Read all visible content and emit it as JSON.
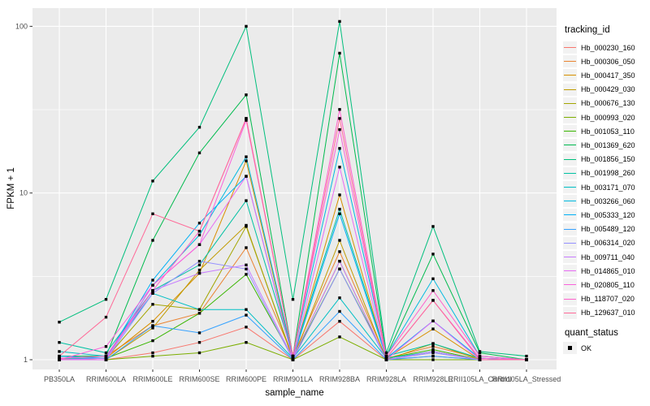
{
  "chart_data": {
    "type": "line",
    "title": "",
    "xlabel": "sample_name",
    "ylabel": "FPKM + 1",
    "y_scale": "log10",
    "ylim": [
      0.87,
      130
    ],
    "ytick_values": [
      1,
      10,
      100
    ],
    "ytick_labels": [
      "1",
      "10",
      "100"
    ],
    "yminor_values": [
      3.1623,
      31.623
    ],
    "grid": true,
    "legend_position": "right",
    "legend_title": "tracking_id",
    "legend2_title": "quant_status",
    "legend2_entry": "OK",
    "point_shape": "filled-black-square",
    "categories": [
      "PB350LA",
      "RRIM600LA",
      "RRIM600LE",
      "RRIM600SE",
      "RRIM600PE",
      "RRIM901LA",
      "RRIM928BA",
      "RRIM928LA",
      "RRIM928LE",
      "RRII105LA_Control",
      "RRII105LA_Stressed"
    ],
    "series": [
      {
        "name": "Hb_000230_160",
        "color": "#F8766D",
        "values": [
          1.0,
          1.0,
          1.1,
          1.27,
          1.57,
          1.0,
          1.7,
          1.0,
          1.05,
          1.0,
          1.0
        ]
      },
      {
        "name": "Hb_000306_050",
        "color": "#EA8331",
        "values": [
          1.02,
          1.05,
          1.6,
          1.9,
          4.7,
          1.05,
          4.45,
          1.02,
          1.2,
          1.02,
          1.0
        ]
      },
      {
        "name": "Hb_000417_350",
        "color": "#D89000",
        "values": [
          1.0,
          1.02,
          1.7,
          3.3,
          15.6,
          1.02,
          9.75,
          1.02,
          1.53,
          1.0,
          1.0
        ]
      },
      {
        "name": "Hb_000429_030",
        "color": "#C09B00",
        "values": [
          1.0,
          1.0,
          1.55,
          3.45,
          6.4,
          1.0,
          5.2,
          1.0,
          1.25,
          1.0,
          1.0
        ]
      },
      {
        "name": "Hb_000676_130",
        "color": "#A3A500",
        "values": [
          1.0,
          1.02,
          2.15,
          2.0,
          6.3,
          1.02,
          3.9,
          1.0,
          1.12,
          1.0,
          1.0
        ]
      },
      {
        "name": "Hb_000993_020",
        "color": "#7CAE00",
        "values": [
          1.0,
          1.0,
          1.05,
          1.1,
          1.27,
          1.0,
          1.37,
          1.0,
          1.0,
          1.0,
          1.0
        ]
      },
      {
        "name": "Hb_001053_110",
        "color": "#39B600",
        "values": [
          1.02,
          1.02,
          1.3,
          1.9,
          3.25,
          1.02,
          3.5,
          1.02,
          1.15,
          1.0,
          1.0
        ]
      },
      {
        "name": "Hb_001369_620",
        "color": "#00BB4E",
        "values": [
          1.05,
          1.05,
          5.2,
          17.4,
          38.8,
          1.05,
          69.0,
          1.05,
          4.3,
          1.1,
          1.0
        ]
      },
      {
        "name": "Hb_001856_150",
        "color": "#00BF7D",
        "values": [
          1.68,
          2.3,
          11.8,
          24.8,
          100.0,
          2.3,
          107.0,
          1.1,
          6.3,
          1.12,
          1.05
        ]
      },
      {
        "name": "Hb_001998_260",
        "color": "#00C1A3",
        "values": [
          1.27,
          1.1,
          2.6,
          3.7,
          9.0,
          1.05,
          8.0,
          1.05,
          1.25,
          1.02,
          1.0
        ]
      },
      {
        "name": "Hb_003171_070",
        "color": "#00BFC4",
        "values": [
          1.12,
          1.05,
          2.5,
          2.0,
          2.0,
          1.02,
          2.35,
          1.02,
          1.12,
          1.0,
          1.0
        ]
      },
      {
        "name": "Hb_003266_060",
        "color": "#00BAE0",
        "values": [
          1.02,
          1.02,
          2.8,
          5.6,
          16.5,
          1.05,
          18.5,
          1.05,
          3.06,
          1.05,
          1.0
        ]
      },
      {
        "name": "Hb_005333_120",
        "color": "#00B0F6",
        "values": [
          1.05,
          1.02,
          3.0,
          6.6,
          12.6,
          1.02,
          7.5,
          1.02,
          1.71,
          1.02,
          1.0
        ]
      },
      {
        "name": "Hb_005489_120",
        "color": "#35A2FF",
        "values": [
          1.0,
          1.0,
          1.6,
          1.45,
          1.85,
          1.0,
          1.95,
          1.0,
          1.05,
          1.0,
          1.0
        ]
      },
      {
        "name": "Hb_006314_020",
        "color": "#9590FF",
        "values": [
          1.0,
          1.0,
          2.5,
          3.9,
          3.5,
          1.0,
          3.5,
          1.0,
          1.1,
          1.0,
          1.0
        ]
      },
      {
        "name": "Hb_009711_040",
        "color": "#C77CFF",
        "values": [
          1.0,
          1.02,
          2.6,
          3.3,
          3.7,
          1.02,
          3.9,
          1.0,
          1.12,
          1.0,
          1.0
        ]
      },
      {
        "name": "Hb_014865_010",
        "color": "#E76BF3",
        "values": [
          1.0,
          1.0,
          2.8,
          4.9,
          12.6,
          1.0,
          14.3,
          1.0,
          1.71,
          1.0,
          1.0
        ]
      },
      {
        "name": "Hb_020805_110",
        "color": "#FA62DB",
        "values": [
          1.0,
          1.2,
          2.8,
          4.9,
          27.3,
          1.05,
          24.0,
          1.02,
          2.27,
          1.02,
          1.0
        ]
      },
      {
        "name": "Hb_118707_020",
        "color": "#FF61CC",
        "values": [
          1.02,
          1.05,
          2.6,
          5.9,
          28.0,
          1.05,
          31.7,
          1.05,
          2.6,
          1.05,
          1.0
        ]
      },
      {
        "name": "Hb_129637_010",
        "color": "#FF6A98",
        "values": [
          1.05,
          1.8,
          7.5,
          5.9,
          28.0,
          1.05,
          28.0,
          1.02,
          2.27,
          1.0,
          1.0
        ]
      }
    ],
    "colors": {
      "panel_bg": "#EBEBEB",
      "grid": "#FFFFFF",
      "tick_text": "#4D4D4D",
      "axis_title_text": "#000000",
      "legend_key_bg": "#F2F2F2",
      "point": "#000000"
    }
  }
}
